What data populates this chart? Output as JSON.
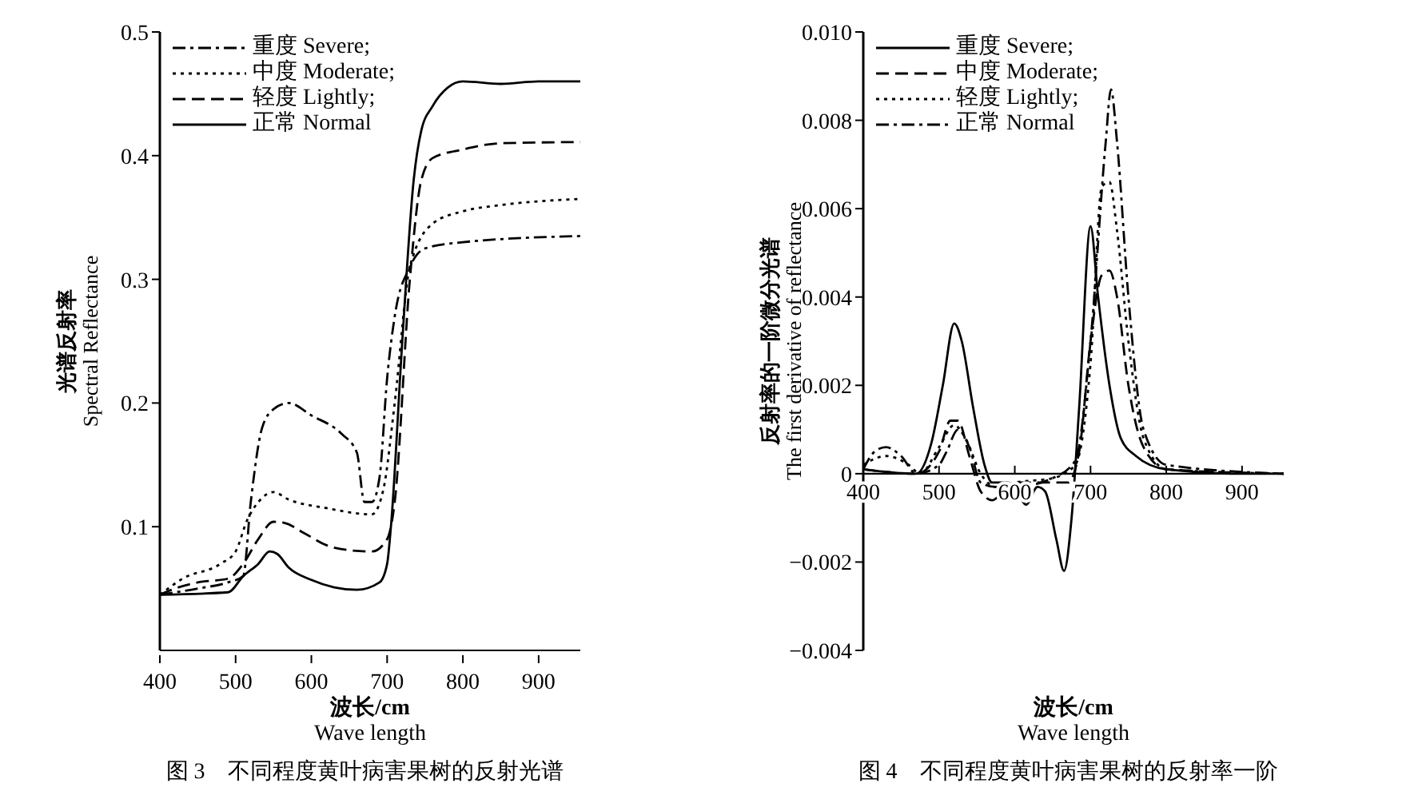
{
  "chart_data": [
    {
      "type": "line",
      "xlabel": "波长/cm\nWave length",
      "ylabel": "光谱反射率\nSpectral Reflectance",
      "annotations": [
        "图 3　不同程度黄叶病害果树的反射光谱"
      ],
      "xlim": [
        400,
        955
      ],
      "xticks": [
        400,
        500,
        600,
        700,
        800,
        900
      ],
      "ylim": [
        0,
        0.5
      ],
      "yticks": [
        0.1,
        0.2,
        0.3,
        0.4,
        0.5
      ],
      "legend": "top left",
      "grid": false,
      "marker": "none",
      "series": [
        {
          "name": "重度 Severe;",
          "color": "#000000",
          "line_style": "dashdot",
          "x": [
            400,
            450,
            490,
            510,
            520,
            535,
            550,
            570,
            600,
            640,
            660,
            670,
            680,
            690,
            700,
            710,
            730,
            750,
            800,
            955
          ],
          "values": [
            0.045,
            0.05,
            0.055,
            0.06,
            0.12,
            0.18,
            0.195,
            0.2,
            0.19,
            0.175,
            0.16,
            0.12,
            0.12,
            0.14,
            0.22,
            0.27,
            0.31,
            0.325,
            0.33,
            0.335
          ]
        },
        {
          "name": "中度 Moderate;",
          "color": "#000000",
          "line_style": "dotted",
          "x": [
            400,
            430,
            480,
            500,
            515,
            530,
            550,
            570,
            620,
            680,
            695,
            710,
            730,
            760,
            800,
            850,
            955
          ],
          "values": [
            0.045,
            0.058,
            0.07,
            0.08,
            0.105,
            0.12,
            0.128,
            0.122,
            0.115,
            0.11,
            0.13,
            0.2,
            0.31,
            0.345,
            0.355,
            0.36,
            0.365
          ]
        },
        {
          "name": "轻度 Lightly;",
          "color": "#000000",
          "line_style": "dashed",
          "x": [
            400,
            420,
            450,
            490,
            510,
            530,
            550,
            565,
            590,
            620,
            650,
            680,
            700,
            710,
            730,
            745,
            760,
            800,
            850,
            955
          ],
          "values": [
            0.045,
            0.05,
            0.055,
            0.058,
            0.07,
            0.09,
            0.104,
            0.103,
            0.095,
            0.085,
            0.081,
            0.08,
            0.09,
            0.12,
            0.3,
            0.38,
            0.398,
            0.405,
            0.41,
            0.411
          ]
        },
        {
          "name": "正常 Normal",
          "color": "#000000",
          "line_style": "solid",
          "x": [
            400,
            490,
            510,
            530,
            545,
            555,
            570,
            600,
            630,
            660,
            690,
            700,
            705,
            720,
            735,
            745,
            760,
            780,
            800,
            850,
            900,
            955
          ],
          "values": [
            0.045,
            0.047,
            0.06,
            0.07,
            0.08,
            0.078,
            0.067,
            0.057,
            0.051,
            0.049,
            0.055,
            0.07,
            0.1,
            0.25,
            0.38,
            0.42,
            0.44,
            0.455,
            0.46,
            0.458,
            0.46,
            0.46
          ]
        }
      ]
    },
    {
      "type": "line",
      "xlabel": "波长/cm\nWave length",
      "ylabel": "反射率的一阶微分光谱\nThe first derivative of reflectance",
      "annotations": [
        "图 4　不同程度黄叶病害果树的反射率一阶"
      ],
      "xlim": [
        400,
        955
      ],
      "xticks": [
        400,
        500,
        600,
        700,
        800,
        900
      ],
      "ylim": [
        -0.004,
        0.01
      ],
      "yticks": [
        {
          "value": -0.004,
          "label": "−0.004"
        },
        {
          "value": -0.002,
          "label": "−0.002"
        },
        0,
        {
          "value": 0.002,
          "label": "0.002"
        },
        {
          "value": 0.004,
          "label": "0.004"
        },
        {
          "value": 0.006,
          "label": "0.006"
        },
        {
          "value": 0.008,
          "label": "0.008"
        },
        {
          "value": 0.01,
          "label": "0.010"
        }
      ],
      "legend": "top left",
      "grid": false,
      "marker": "none",
      "series": [
        {
          "name": "重度 Severe;",
          "color": "#000000",
          "line_style": "solid",
          "x": [
            400,
            470,
            490,
            505,
            520,
            530,
            545,
            560,
            570,
            590,
            600,
            615,
            630,
            640,
            655,
            665,
            675,
            685,
            700,
            710,
            725,
            740,
            760,
            800,
            900,
            955
          ],
          "values": [
            0.0001,
            0,
            0.0007,
            0.002,
            0.0034,
            0.003,
            0.0015,
            0.0002,
            -0.0002,
            -0.0002,
            -0.0003,
            -0.0007,
            -0.0003,
            -0.0004,
            -0.0015,
            -0.0022,
            -0.001,
            0.0015,
            0.0056,
            0.004,
            0.002,
            0.0008,
            0.0004,
            0.0001,
            0,
            0
          ]
        },
        {
          "name": "中度 Moderate;",
          "color": "#000000",
          "line_style": "dashed",
          "x": [
            400,
            470,
            500,
            515,
            525,
            540,
            555,
            570,
            585,
            600,
            650,
            670,
            685,
            700,
            715,
            725,
            735,
            750,
            770,
            800,
            955
          ],
          "values": [
            0.0001,
            0,
            0.0005,
            0.0012,
            0.0012,
            0.0004,
            -0.0004,
            -0.0006,
            -0.0004,
            -0.0002,
            -0.0002,
            -0.0002,
            0.0005,
            0.003,
            0.0045,
            0.0046,
            0.004,
            0.002,
            0.0006,
            0.0001,
            0
          ]
        },
        {
          "name": "轻度 Lightly;",
          "color": "#000000",
          "line_style": "dotted",
          "x": [
            400,
            430,
            460,
            475,
            500,
            520,
            535,
            555,
            575,
            600,
            650,
            680,
            700,
            715,
            725,
            735,
            750,
            770,
            800,
            955
          ],
          "values": [
            0.0002,
            0.0004,
            0.0002,
            0,
            0.0006,
            0.0011,
            0.0008,
            0,
            -0.0003,
            -0.0002,
            -0.0001,
            0.0002,
            0.0025,
            0.0065,
            0.0066,
            0.0055,
            0.003,
            0.0008,
            0.0001,
            0
          ]
        },
        {
          "name": "正常 Normal",
          "color": "#000000",
          "line_style": "dashdot",
          "x": [
            400,
            415,
            430,
            450,
            470,
            500,
            510,
            525,
            540,
            555,
            575,
            600,
            650,
            680,
            700,
            720,
            727,
            735,
            750,
            770,
            800,
            955
          ],
          "values": [
            0.0001,
            0.0005,
            0.0006,
            0.0004,
            0,
            0.0002,
            0.0005,
            0.001,
            0.0006,
            -0.0002,
            -0.0003,
            -0.0003,
            -0.0001,
            0.0003,
            0.003,
            0.0075,
            0.0087,
            0.0075,
            0.004,
            0.001,
            0.0002,
            0
          ]
        }
      ]
    }
  ]
}
